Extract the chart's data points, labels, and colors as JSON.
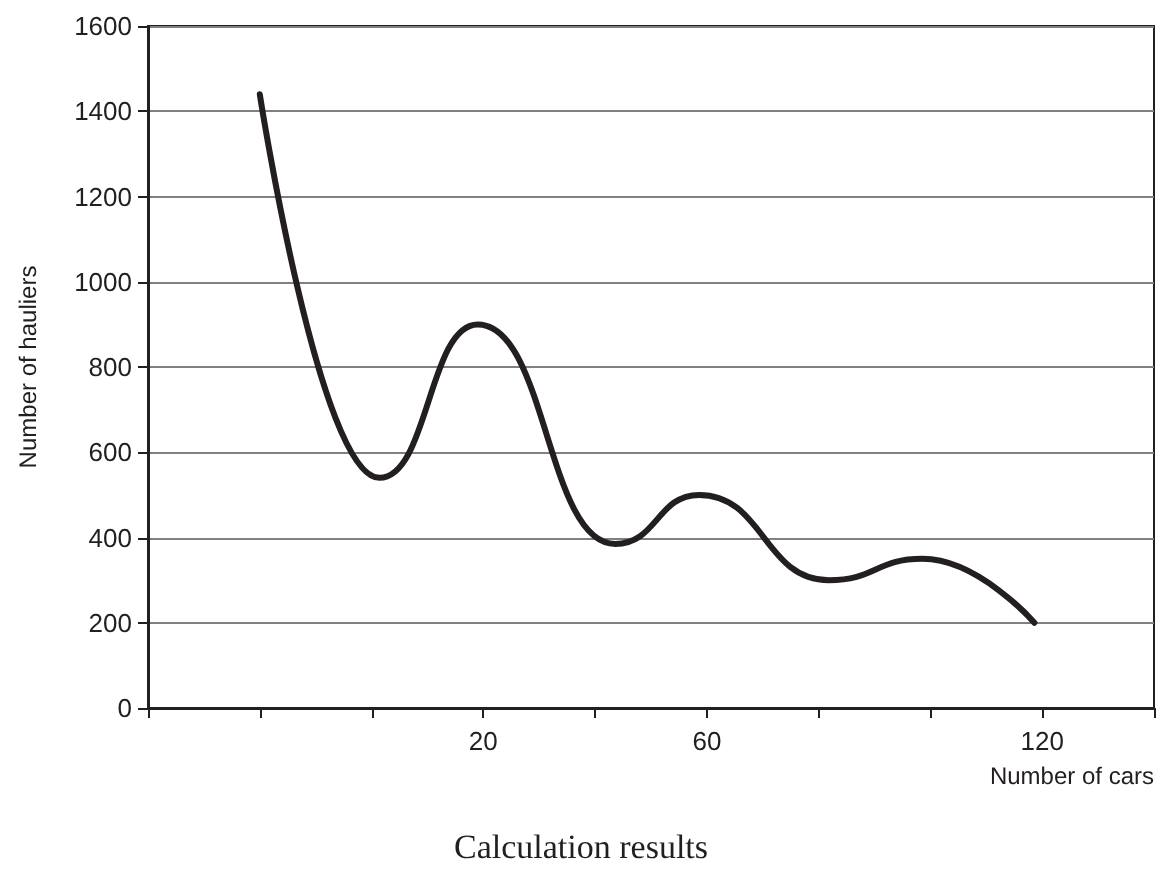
{
  "chart_data": {
    "type": "line",
    "title": "Calculation results",
    "xlabel": "Number of cars",
    "ylabel": "Number of hauliers",
    "x": [
      -20,
      1.4,
      19,
      43.6,
      58.6,
      81.8,
      98.6,
      118.6
    ],
    "values": [
      1440,
      540,
      900,
      385,
      500,
      300,
      350,
      200
    ],
    "color": "#231f20",
    "xlim": [
      -40,
      140
    ],
    "xticks": [
      {
        "value": -40,
        "label": null
      },
      {
        "value": -20,
        "label": null
      },
      {
        "value": 0,
        "label": null
      },
      20,
      {
        "value": 40,
        "label": null
      },
      60,
      {
        "value": 80,
        "label": null
      },
      {
        "value": 100,
        "label": null
      },
      120,
      {
        "value": 140,
        "label": null
      }
    ],
    "ylim": [
      0,
      1600
    ],
    "yticks": [
      0,
      200,
      400,
      600,
      800,
      1000,
      1200,
      1400,
      1600
    ],
    "grid": "y",
    "marker": "none",
    "line_style": "solid"
  }
}
